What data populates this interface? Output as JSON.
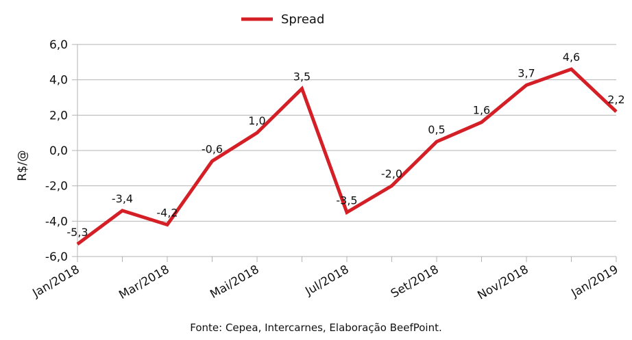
{
  "chart_data": {
    "type": "line",
    "ylabel": "R$/@",
    "xlabel": "",
    "ylim": [
      -6.0,
      6.0
    ],
    "y_ticks": [
      "-6,0",
      "-4,0",
      "-2,0",
      "0,0",
      "2,0",
      "4,0",
      "6,0"
    ],
    "x_tick_labels": [
      "Jan/2018",
      "Mar/2018",
      "Mai/2018",
      "Jul/2018",
      "Set/2018",
      "Nov/2018",
      "Jan/2019"
    ],
    "legend_position": "top-center",
    "grid": true,
    "series": [
      {
        "name": "Spread",
        "color": "#d41f26",
        "values": [
          -5.3,
          -3.4,
          -4.2,
          -0.6,
          1.0,
          3.5,
          -3.5,
          -2.0,
          0.5,
          1.6,
          3.7,
          4.6,
          2.2
        ],
        "labels": [
          "-5,3",
          "-3,4",
          "-4,2",
          "-0,6",
          "1,0",
          "3,5",
          "-3,5",
          "-2,0",
          "0,5",
          "1,6",
          "3,7",
          "4,6",
          "2,2"
        ]
      }
    ]
  },
  "source_note": "Fonte: Cepea, Intercarnes, Elaboração BeefPoint."
}
